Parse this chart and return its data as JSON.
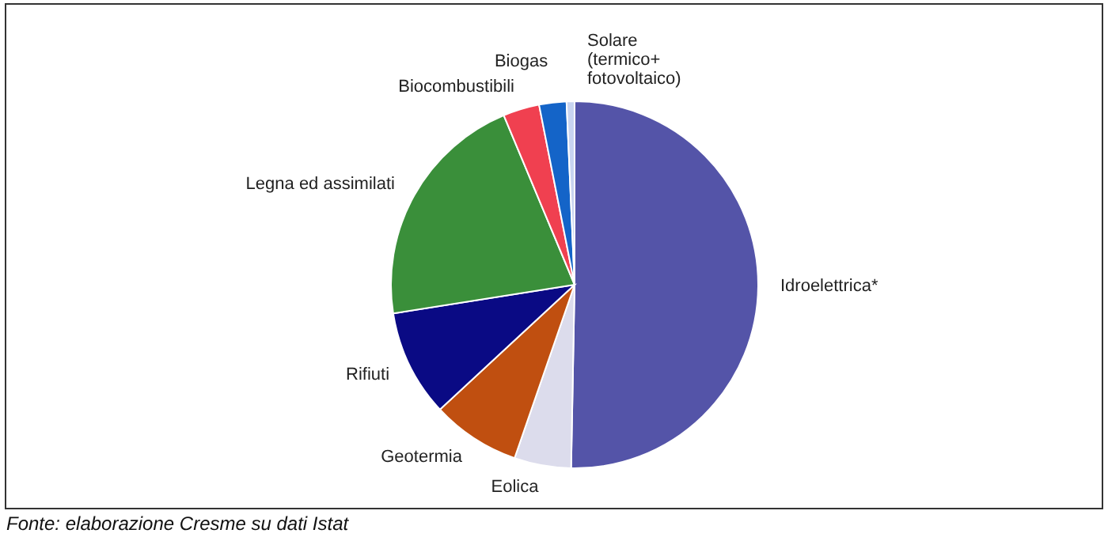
{
  "chart_data": {
    "type": "pie",
    "categories": [
      "Idroelettrica*",
      "Eolica",
      "Geotermia",
      "Rifiuti",
      "Legna ed assimilati",
      "Biocombustibili",
      "Biogas",
      "Solare\n(termico+\nfotovoltaico)"
    ],
    "values": [
      50.3,
      5,
      7.8,
      9.4,
      21.2,
      3.2,
      2.4,
      0.7
    ],
    "colors": [
      "#5454a8",
      "#dcdcec",
      "#c04f10",
      "#0a0a84",
      "#3a8f3a",
      "#f04050",
      "#1464c8",
      "#c8d4f0"
    ],
    "legend": false,
    "annotations": [
      "Fonte: elaborazione Cresme su dati Istat"
    ]
  }
}
